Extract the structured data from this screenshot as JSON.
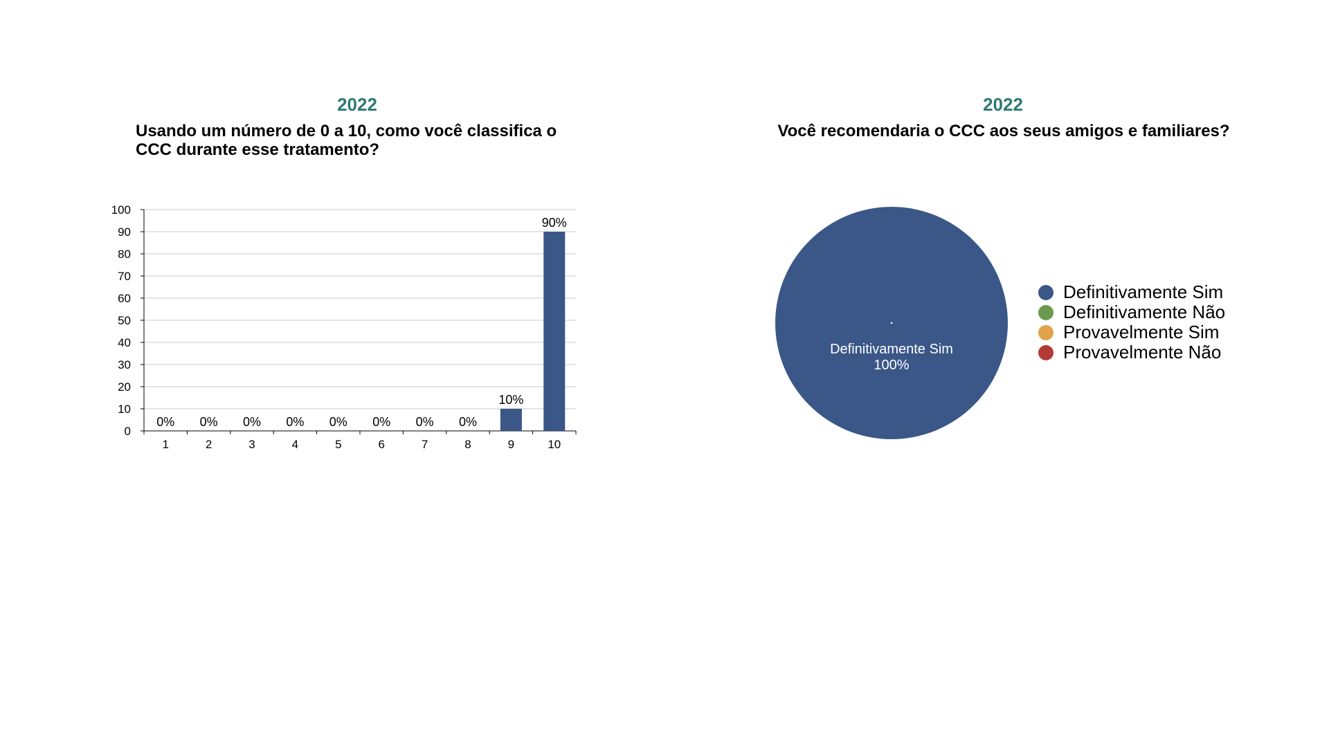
{
  "chart_data": [
    {
      "type": "bar",
      "year": "2022",
      "title": "Usando um número de 0 a 10, como você classifica o CCC durante esse tratamento?",
      "categories": [
        "1",
        "2",
        "3",
        "4",
        "5",
        "6",
        "7",
        "8",
        "9",
        "10"
      ],
      "values": [
        0,
        0,
        0,
        0,
        0,
        0,
        0,
        0,
        10,
        90
      ],
      "data_labels": [
        "0%",
        "0%",
        "0%",
        "0%",
        "0%",
        "0%",
        "0%",
        "0%",
        "10%",
        "90%"
      ],
      "ylim": [
        0,
        100
      ],
      "yticks": [
        "0",
        "10",
        "20",
        "30",
        "40",
        "50",
        "60",
        "70",
        "80",
        "90",
        "100"
      ],
      "xlabel": "",
      "ylabel": "",
      "grid": true,
      "bar_color": "#3a5788"
    },
    {
      "type": "pie",
      "year": "2022",
      "title": "Você recomendaria o CCC aos seus amigos e familiares?",
      "labels": [
        "Definitivamente Sim",
        "Definitivamente Não",
        "Provavelmente Sim",
        "Provavelmente Não"
      ],
      "values": [
        100,
        0,
        0,
        0
      ],
      "colors": [
        "#3a5788",
        "#6b9a4f",
        "#e0a24a",
        "#b43a35"
      ],
      "slice_label": "Definitivamente Sim",
      "slice_percent": "100%",
      "legend": "right"
    }
  ]
}
